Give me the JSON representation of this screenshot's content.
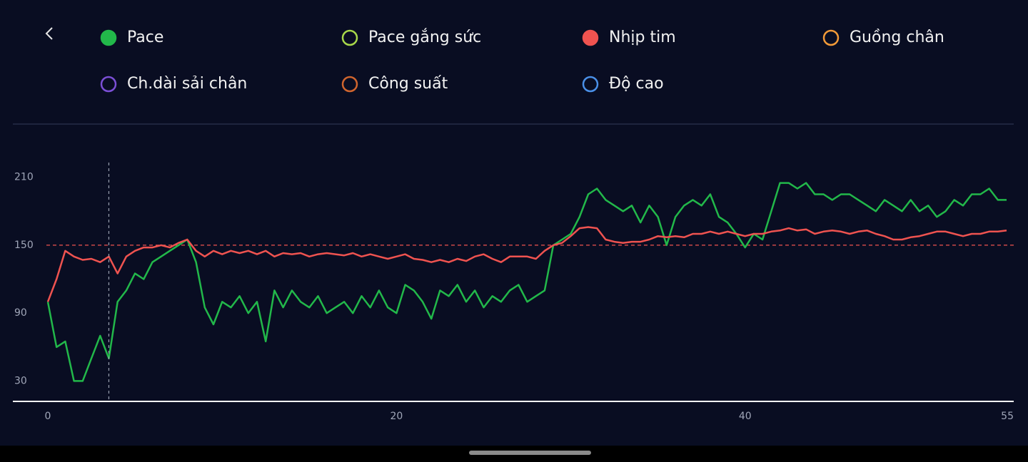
{
  "chart_data": {
    "type": "line",
    "x": [
      0,
      0.5,
      1,
      1.5,
      2,
      2.5,
      3,
      3.5,
      4,
      4.5,
      5,
      5.5,
      6,
      6.5,
      7,
      7.5,
      8,
      8.5,
      9,
      9.5,
      10,
      10.5,
      11,
      11.5,
      12,
      12.5,
      13,
      13.5,
      14,
      14.5,
      15,
      15.5,
      16,
      16.5,
      17,
      17.5,
      18,
      18.5,
      19,
      19.5,
      20,
      20.5,
      21,
      21.5,
      22,
      22.5,
      23,
      23.5,
      24,
      24.5,
      25,
      25.5,
      26,
      26.5,
      27,
      27.5,
      28,
      28.5,
      29,
      29.5,
      30,
      30.5,
      31,
      31.5,
      32,
      32.5,
      33,
      33.5,
      34,
      34.5,
      35,
      35.5,
      36,
      36.5,
      37,
      37.5,
      38,
      38.5,
      39,
      39.5,
      40,
      40.5,
      41,
      41.5,
      42,
      42.5,
      43,
      43.5,
      44,
      44.5,
      45,
      45.5,
      46,
      46.5,
      47,
      47.5,
      48,
      48.5,
      49,
      49.5,
      50,
      50.5,
      51,
      51.5,
      52,
      52.5,
      53,
      53.5,
      54,
      54.5,
      55
    ],
    "series": [
      {
        "name": "Pace",
        "color": "#22b84a",
        "visible": true,
        "values": [
          100,
          60,
          65,
          30,
          30,
          50,
          70,
          50,
          100,
          110,
          125,
          120,
          135,
          140,
          145,
          150,
          155,
          135,
          95,
          80,
          100,
          95,
          105,
          90,
          100,
          65,
          110,
          95,
          110,
          100,
          95,
          105,
          90,
          95,
          100,
          90,
          105,
          95,
          110,
          95,
          90,
          115,
          110,
          100,
          85,
          110,
          105,
          115,
          100,
          110,
          95,
          105,
          100,
          110,
          115,
          100,
          105,
          110,
          150,
          155,
          160,
          175,
          195,
          200,
          190,
          185,
          180,
          185,
          170,
          185,
          175,
          150,
          175,
          185,
          190,
          185,
          195,
          175,
          170,
          160,
          148,
          160,
          155,
          180,
          205,
          205,
          200,
          205,
          195,
          195,
          190,
          195,
          195,
          190,
          185,
          180,
          190,
          185,
          180,
          190,
          180,
          185,
          175,
          180,
          190,
          185,
          195,
          195,
          200,
          190,
          190
        ]
      },
      {
        "name": "Pace gắng sức",
        "color": "#a8d84a",
        "visible": false
      },
      {
        "name": "Nhịp tim",
        "color": "#ef5350",
        "visible": true,
        "values": [
          100,
          120,
          145,
          140,
          137,
          138,
          135,
          140,
          125,
          140,
          145,
          148,
          148,
          150,
          148,
          152,
          155,
          145,
          140,
          145,
          142,
          145,
          143,
          145,
          142,
          145,
          140,
          143,
          142,
          143,
          140,
          142,
          143,
          142,
          141,
          143,
          140,
          142,
          140,
          138,
          140,
          142,
          138,
          137,
          135,
          137,
          135,
          138,
          136,
          140,
          142,
          138,
          135,
          140,
          140,
          140,
          138,
          145,
          150,
          152,
          158,
          165,
          166,
          165,
          155,
          153,
          152,
          153,
          153,
          155,
          158,
          157,
          158,
          157,
          160,
          160,
          162,
          160,
          162,
          160,
          158,
          160,
          160,
          162,
          163,
          165,
          163,
          164,
          160,
          162,
          163,
          162,
          160,
          162,
          163,
          160,
          158,
          155,
          155,
          157,
          158,
          160,
          162,
          162,
          160,
          158,
          160,
          160,
          162,
          162,
          163
        ]
      },
      {
        "name": "Guồng chân",
        "color": "#f29a38",
        "visible": false
      },
      {
        "name": "Ch.dài sải chân",
        "color": "#7b4fd6",
        "visible": false
      },
      {
        "name": "Công suất",
        "color": "#d0652e",
        "visible": false
      },
      {
        "name": "Độ cao",
        "color": "#4a90e8",
        "visible": false
      }
    ],
    "xlim": [
      0,
      55
    ],
    "xticks": [
      0,
      20,
      40,
      55
    ],
    "ylim": [
      12,
      223
    ],
    "yticks": [
      30,
      90,
      150,
      210
    ],
    "reference_line": 150,
    "cursor_x": 3.5
  }
}
